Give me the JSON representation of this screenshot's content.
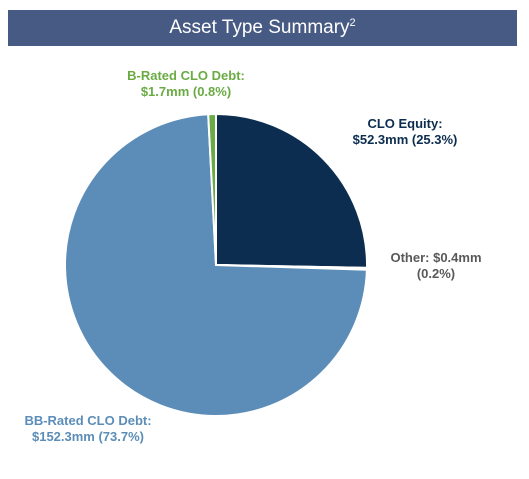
{
  "chart_data": {
    "type": "pie",
    "title": "Asset Type Summary",
    "title_note": "2",
    "categories": [
      "CLO Equity:",
      "Other:",
      "BB-Rated CLO Debt:",
      "B-Rated CLO Debt:"
    ],
    "values": [
      52.3,
      0.4,
      152.3,
      1.7
    ],
    "value_labels": [
      "$52.3mm (25.3%)",
      "$0.4mm (0.2%)",
      "$152.3mm (73.7%)",
      "$1.7mm (0.8%)"
    ],
    "colors": [
      "#0c2d4f",
      "#a6a6a6",
      "#5b8db8",
      "#6aab44"
    ],
    "label_colors": [
      "#0c2d4f",
      "#595959",
      "#5b8db8",
      "#6aab44"
    ]
  }
}
